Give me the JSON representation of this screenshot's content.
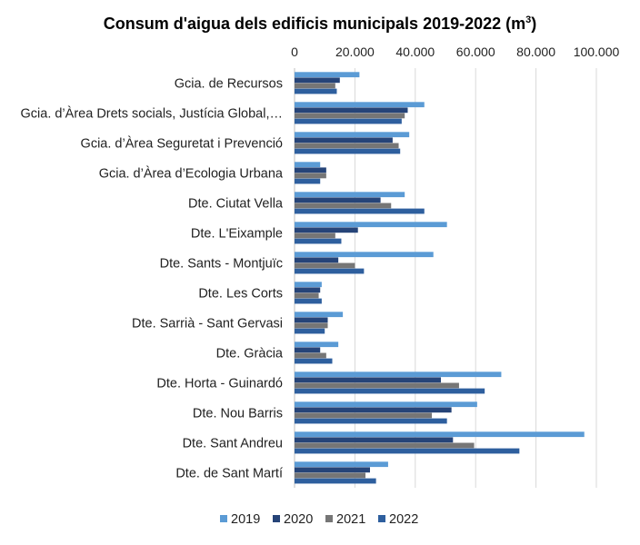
{
  "chart_data": {
    "type": "bar",
    "orientation": "horizontal",
    "title": "Consum d'aigua dels edificis municipals 2019-2022 (m",
    "title_superscript": "3",
    "title_suffix": ")",
    "xlim": [
      0,
      100000
    ],
    "xticks": [
      0,
      20000,
      40000,
      60000,
      80000,
      100000
    ],
    "xtick_labels": [
      "0",
      "20.000",
      "40.000",
      "60.000",
      "80.000",
      "100.000"
    ],
    "x_axis_position": "top",
    "grid": true,
    "legend_position": "bottom",
    "categories": [
      "Gcia. de Recursos",
      "Gcia. d’Àrea Drets socials, Justícia Global,…",
      "Gcia. d’Àrea Seguretat i Prevenció",
      "Gcia. d’Àrea d’Ecologia Urbana",
      "Dte. Ciutat Vella",
      "Dte. L'Eixample",
      "Dte. Sants - Montjuïc",
      "Dte. Les Corts",
      "Dte. Sarrià - Sant Gervasi",
      "Dte. Gràcia",
      "Dte. Horta - Guinardó",
      "Dte. Nou Barris",
      "Dte. Sant Andreu",
      "Dte. de Sant Martí"
    ],
    "series": [
      {
        "name": "2019",
        "color": "#5b9bd5",
        "values": [
          21500,
          43000,
          38000,
          8500,
          36500,
          50500,
          46000,
          9000,
          16000,
          14500,
          68500,
          60500,
          96000,
          31000
        ]
      },
      {
        "name": "2020",
        "color": "#264478",
        "values": [
          15000,
          37500,
          32500,
          10500,
          28500,
          21000,
          14500,
          8500,
          11000,
          8500,
          48500,
          52000,
          52500,
          25000
        ]
      },
      {
        "name": "2021",
        "color": "#767676",
        "values": [
          13500,
          36500,
          34500,
          10500,
          32000,
          13500,
          20000,
          8000,
          11000,
          10500,
          54500,
          45500,
          59500,
          23500
        ]
      },
      {
        "name": "2022",
        "color": "#2e5f9e",
        "values": [
          14000,
          35500,
          35000,
          8500,
          43000,
          15500,
          23000,
          9000,
          10000,
          12500,
          63000,
          50500,
          74500,
          27000
        ]
      }
    ]
  }
}
